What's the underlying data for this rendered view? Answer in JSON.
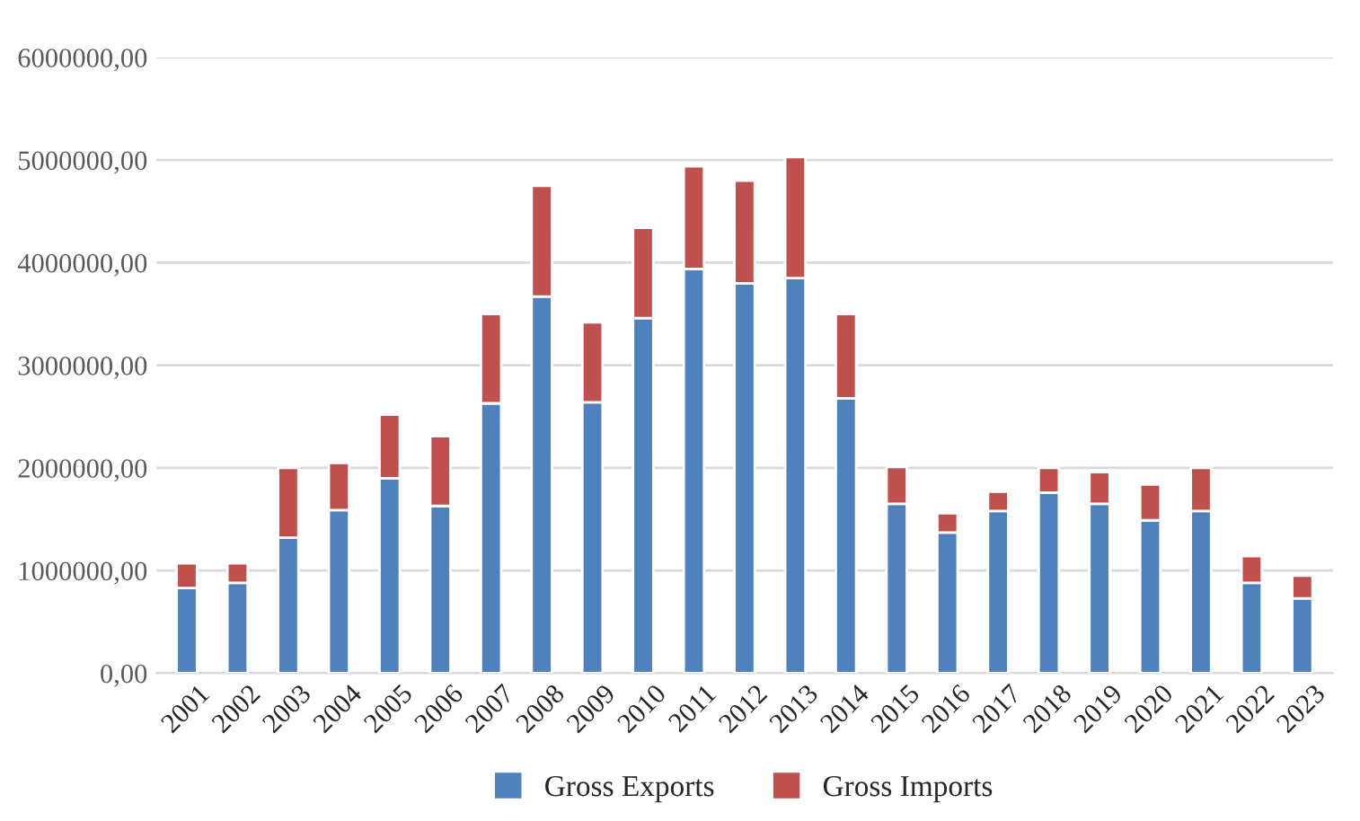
{
  "chart_data": {
    "type": "bar",
    "stacked": true,
    "categories": [
      "2001",
      "2002",
      "2003",
      "2004",
      "2005",
      "2006",
      "2007",
      "2008",
      "2009",
      "2010",
      "2011",
      "2012",
      "2013",
      "2014",
      "2015",
      "2016",
      "2017",
      "2018",
      "2019",
      "2020",
      "2021",
      "2022",
      "2023"
    ],
    "series": [
      {
        "name": "Gross Exports",
        "color": "#4f81bd",
        "values": [
          830000,
          880000,
          1320000,
          1590000,
          1900000,
          1630000,
          2630000,
          3670000,
          2640000,
          3460000,
          3940000,
          3800000,
          3850000,
          2680000,
          1650000,
          1370000,
          1580000,
          1760000,
          1650000,
          1490000,
          1580000,
          880000,
          730000
        ]
      },
      {
        "name": "Gross Imports",
        "color": "#c0504d",
        "values": [
          240000,
          190000,
          680000,
          460000,
          620000,
          680000,
          870000,
          1080000,
          780000,
          880000,
          1000000,
          1000000,
          1180000,
          820000,
          360000,
          190000,
          190000,
          240000,
          310000,
          350000,
          420000,
          260000,
          220000
        ]
      }
    ],
    "ylim": [
      0,
      6000000
    ],
    "yticks": [
      {
        "value": 0,
        "label": "0,00"
      },
      {
        "value": 1000000,
        "label": "1000000,00"
      },
      {
        "value": 2000000,
        "label": "2000000,00"
      },
      {
        "value": 3000000,
        "label": "3000000,00"
      },
      {
        "value": 4000000,
        "label": "4000000,00"
      },
      {
        "value": 5000000,
        "label": "5000000,00"
      },
      {
        "value": 6000000,
        "label": "6000000,00"
      }
    ],
    "grid": "y",
    "legend": "bottom"
  }
}
